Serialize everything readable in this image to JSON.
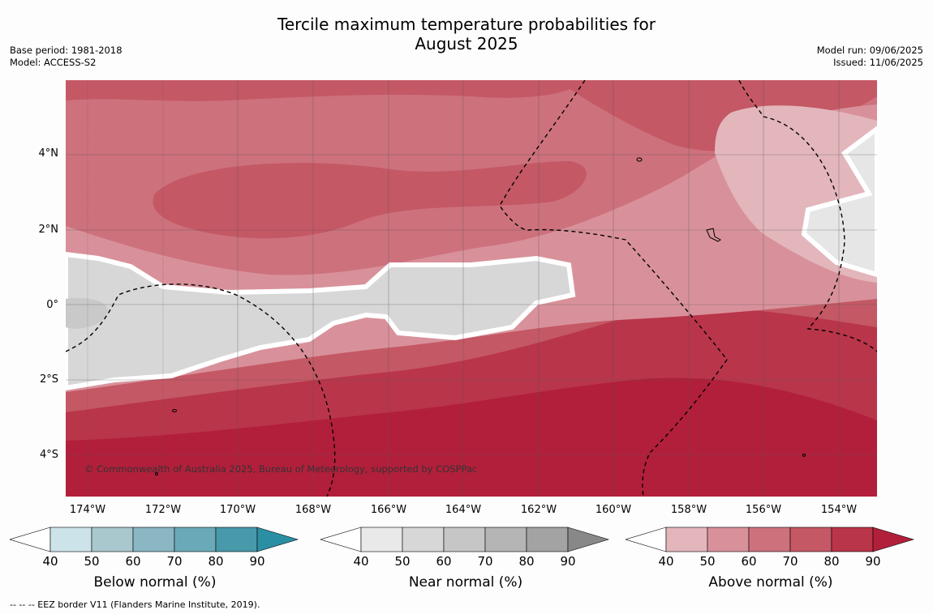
{
  "title_line1": "Tercile maximum temperature probabilities for",
  "title_line2": "August 2025",
  "meta_left": [
    "Base period: 1981-2018",
    "Model: ACCESS-S2"
  ],
  "meta_right": [
    "Model run: 09/06/2025",
    "Issued: 11/06/2025"
  ],
  "lat_labels": [
    "4°N",
    "2°N",
    "0°",
    "2°S",
    "4°S"
  ],
  "lon_labels": [
    "174°W",
    "172°W",
    "170°W",
    "168°W",
    "166°W",
    "164°W",
    "162°W",
    "160°W",
    "158°W",
    "156°W",
    "154°W"
  ],
  "credit": "© Commonwealth of Australia 2025, Bureau of Meteorology, supported by COSPPac",
  "colorbars": [
    {
      "label": "Below normal (%)",
      "ticks": [
        "40",
        "50",
        "60",
        "70",
        "80",
        "90"
      ],
      "colors": [
        "#cde3ea",
        "#a9c8ce",
        "#8bb6c4",
        "#6aaab8",
        "#4899aa",
        "#2a8fa3"
      ]
    },
    {
      "label": "Near normal (%)",
      "ticks": [
        "40",
        "50",
        "60",
        "70",
        "80",
        "90"
      ],
      "colors": [
        "#e9e9e9",
        "#d7d7d7",
        "#c6c6c6",
        "#b5b5b5",
        "#a3a3a3",
        "#888888"
      ]
    },
    {
      "label": "Above normal (%)",
      "ticks": [
        "40",
        "50",
        "60",
        "70",
        "80",
        "90"
      ],
      "colors": [
        "#e3b6bc",
        "#d8919a",
        "#cd717d",
        "#c45865",
        "#b9354a",
        "#b21f3b"
      ]
    }
  ],
  "footnote": "--  --  -- EEZ border V11 (Flanders Marine Institute, 2019)."
}
